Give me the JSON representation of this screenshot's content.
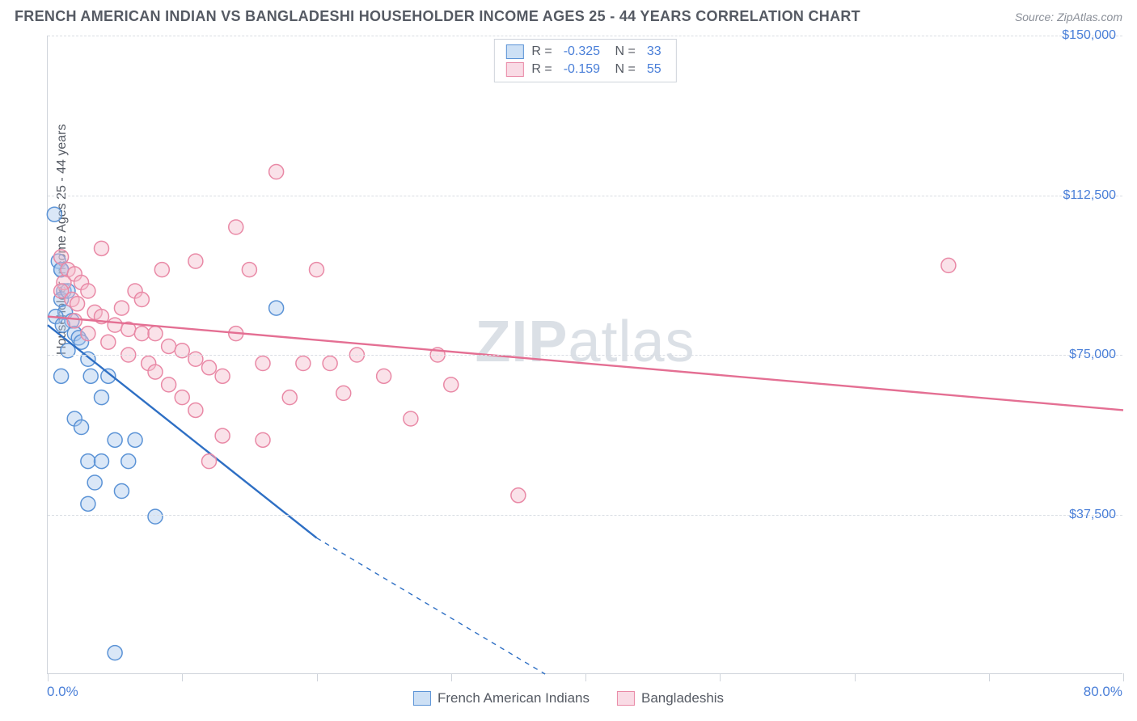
{
  "title": "FRENCH AMERICAN INDIAN VS BANGLADESHI HOUSEHOLDER INCOME AGES 25 - 44 YEARS CORRELATION CHART",
  "source": "Source: ZipAtlas.com",
  "ylabel": "Householder Income Ages 25 - 44 years",
  "watermark_a": "ZIP",
  "watermark_b": "atlas",
  "chart": {
    "type": "scatter",
    "xlim": [
      0,
      80
    ],
    "ylim": [
      0,
      150000
    ],
    "xtick_positions": [
      0,
      10,
      20,
      30,
      40,
      50,
      60,
      70,
      80
    ],
    "xtick_visible_labels": {
      "0": "0.0%",
      "80": "80.0%"
    },
    "ytick_positions": [
      37500,
      75000,
      112500,
      150000
    ],
    "ytick_labels": [
      "$37,500",
      "$75,000",
      "$112,500",
      "$150,000"
    ],
    "grid_color": "#d9dde3",
    "axis_color": "#cfd4db",
    "tick_label_color": "#4a7fd8",
    "background_color": "#ffffff",
    "marker_radius": 9,
    "marker_stroke_width": 1.5,
    "marker_fill_opacity": 0.18,
    "line_width": 2.4,
    "dash_pattern": "6 6",
    "series": [
      {
        "key": "french_american_indians",
        "label": "French American Indians",
        "color_stroke": "#5b93d6",
        "color_fill": "#a9c7ec",
        "line_color": "#2e6fc4",
        "R": "-0.325",
        "N": "33",
        "regression": {
          "x1": 0,
          "y1": 82000,
          "x2": 20,
          "y2": 32000,
          "extend_x2": 37,
          "extend_y2": 0
        },
        "points": [
          [
            0.5,
            108000
          ],
          [
            0.8,
            97000
          ],
          [
            1.0,
            95000
          ],
          [
            1.2,
            90000
          ],
          [
            1.0,
            88000
          ],
          [
            1.5,
            90000
          ],
          [
            1.3,
            85000
          ],
          [
            1.8,
            83000
          ],
          [
            0.6,
            84000
          ],
          [
            1.1,
            82000
          ],
          [
            2.0,
            80000
          ],
          [
            2.3,
            79000
          ],
          [
            2.5,
            78000
          ],
          [
            1.5,
            76000
          ],
          [
            3.0,
            74000
          ],
          [
            1.0,
            70000
          ],
          [
            3.2,
            70000
          ],
          [
            4.5,
            70000
          ],
          [
            4.0,
            65000
          ],
          [
            2.0,
            60000
          ],
          [
            2.5,
            58000
          ],
          [
            5.0,
            55000
          ],
          [
            6.5,
            55000
          ],
          [
            3.0,
            50000
          ],
          [
            4.0,
            50000
          ],
          [
            6.0,
            50000
          ],
          [
            3.5,
            45000
          ],
          [
            5.5,
            43000
          ],
          [
            3.0,
            40000
          ],
          [
            8.0,
            37000
          ],
          [
            5.0,
            5000
          ],
          [
            17.0,
            86000
          ],
          [
            1.0,
            95000
          ]
        ]
      },
      {
        "key": "bangladeshis",
        "label": "Bangladeshis",
        "color_stroke": "#e989a6",
        "color_fill": "#f3bccd",
        "line_color": "#e46f93",
        "R": "-0.159",
        "N": "55",
        "regression": {
          "x1": 0,
          "y1": 84000,
          "x2": 80,
          "y2": 62000
        },
        "points": [
          [
            1.0,
            98000
          ],
          [
            1.5,
            95000
          ],
          [
            2.0,
            94000
          ],
          [
            1.2,
            92000
          ],
          [
            2.5,
            92000
          ],
          [
            1.0,
            90000
          ],
          [
            3.0,
            90000
          ],
          [
            1.8,
            88000
          ],
          [
            2.2,
            87000
          ],
          [
            3.5,
            85000
          ],
          [
            4.0,
            84000
          ],
          [
            2.0,
            83000
          ],
          [
            5.0,
            82000
          ],
          [
            6.0,
            81000
          ],
          [
            3.0,
            80000
          ],
          [
            7.0,
            80000
          ],
          [
            8.0,
            80000
          ],
          [
            4.5,
            78000
          ],
          [
            9.0,
            77000
          ],
          [
            10.0,
            76000
          ],
          [
            6.0,
            75000
          ],
          [
            11.0,
            74000
          ],
          [
            7.5,
            73000
          ],
          [
            12.0,
            72000
          ],
          [
            8.0,
            71000
          ],
          [
            13.0,
            70000
          ],
          [
            14.0,
            80000
          ],
          [
            9.0,
            68000
          ],
          [
            15.0,
            95000
          ],
          [
            10.0,
            65000
          ],
          [
            16.0,
            73000
          ],
          [
            11.0,
            62000
          ],
          [
            17.0,
            118000
          ],
          [
            18.0,
            65000
          ],
          [
            13.0,
            56000
          ],
          [
            19.0,
            73000
          ],
          [
            20.0,
            95000
          ],
          [
            21.0,
            73000
          ],
          [
            22.0,
            66000
          ],
          [
            23.0,
            75000
          ],
          [
            25.0,
            70000
          ],
          [
            27.0,
            60000
          ],
          [
            29.0,
            75000
          ],
          [
            14.0,
            105000
          ],
          [
            11.0,
            97000
          ],
          [
            8.5,
            95000
          ],
          [
            6.5,
            90000
          ],
          [
            30.0,
            68000
          ],
          [
            35.0,
            42000
          ],
          [
            4.0,
            100000
          ],
          [
            12.0,
            50000
          ],
          [
            67.0,
            96000
          ],
          [
            16.0,
            55000
          ],
          [
            7.0,
            88000
          ],
          [
            5.5,
            86000
          ]
        ]
      }
    ]
  },
  "stats_box": {
    "rows": [
      {
        "swatch_stroke": "#5b93d6",
        "swatch_fill": "#cde0f5",
        "R_label": "R =",
        "R": "-0.325",
        "N_label": "N =",
        "N": "33"
      },
      {
        "swatch_stroke": "#e989a6",
        "swatch_fill": "#f9dbe5",
        "R_label": "R =",
        "R": "-0.159",
        "N_label": "N =",
        "N": "55"
      }
    ]
  },
  "bottom_legend": [
    {
      "swatch_stroke": "#5b93d6",
      "swatch_fill": "#cde0f5",
      "label": "French American Indians"
    },
    {
      "swatch_stroke": "#e989a6",
      "swatch_fill": "#f9dbe5",
      "label": "Bangladeshis"
    }
  ]
}
